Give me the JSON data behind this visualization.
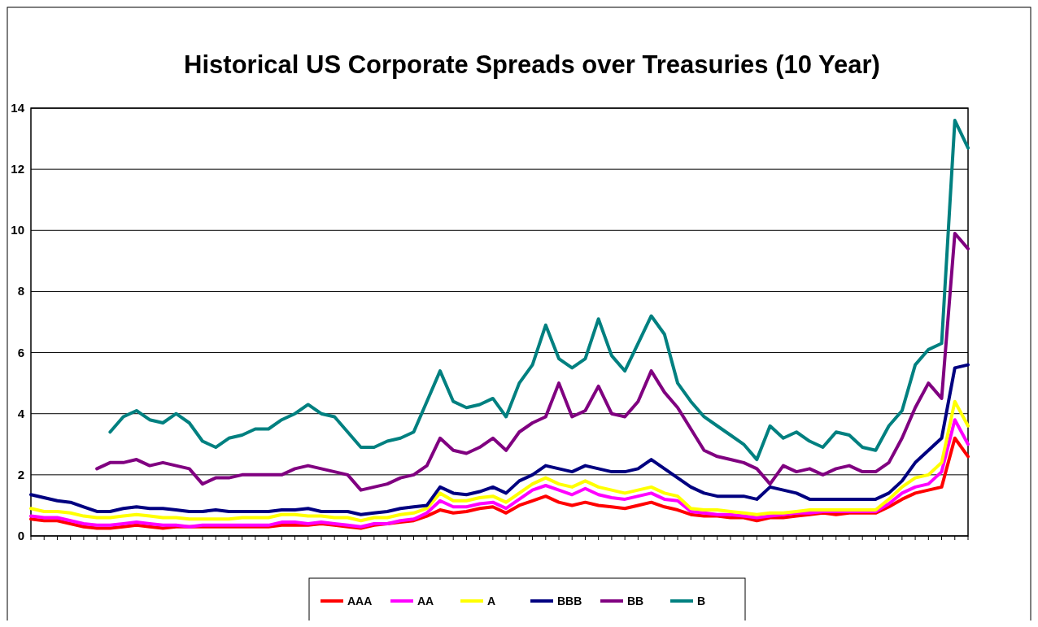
{
  "chart_data": {
    "type": "line",
    "title": "Historical US Corporate Spreads over Treasuries (10 Year)",
    "categories": [
      null,
      null,
      null,
      null,
      null,
      null,
      null,
      null,
      null,
      null,
      null,
      null,
      null,
      null,
      null,
      null,
      null,
      null,
      null,
      null,
      null,
      null,
      null,
      null,
      null,
      null,
      null,
      null,
      null,
      null,
      null,
      null,
      null,
      null,
      null,
      null,
      null,
      null,
      null,
      null,
      null,
      null,
      null,
      null,
      null,
      null,
      null,
      null,
      null,
      null,
      null,
      null,
      null,
      null,
      null,
      null,
      null,
      null,
      null,
      null,
      null,
      null,
      null,
      null,
      null,
      null,
      null,
      null,
      null,
      null,
      null,
      null
    ],
    "series": [
      {
        "name": "AAA",
        "color": "#ff0000",
        "values": [
          0.55,
          0.5,
          0.5,
          0.4,
          0.3,
          0.25,
          0.25,
          0.3,
          0.35,
          0.3,
          0.25,
          0.3,
          0.3,
          0.3,
          0.3,
          0.3,
          0.3,
          0.3,
          0.3,
          0.35,
          0.35,
          0.35,
          0.4,
          0.35,
          0.3,
          0.25,
          0.35,
          0.4,
          0.45,
          0.5,
          0.65,
          0.85,
          0.75,
          0.8,
          0.9,
          0.95,
          0.75,
          1.0,
          1.15,
          1.3,
          1.1,
          1.0,
          1.1,
          1.0,
          0.95,
          0.9,
          1.0,
          1.1,
          0.95,
          0.85,
          0.7,
          0.65,
          0.65,
          0.6,
          0.6,
          0.5,
          0.6,
          0.6,
          0.65,
          0.7,
          0.75,
          0.7,
          0.75,
          0.75,
          0.75,
          0.95,
          1.2,
          1.4,
          1.5,
          1.6,
          3.2,
          2.6
        ]
      },
      {
        "name": "AA",
        "color": "#ff00ff",
        "values": [
          0.65,
          0.6,
          0.6,
          0.5,
          0.4,
          0.35,
          0.35,
          0.4,
          0.45,
          0.4,
          0.35,
          0.35,
          0.3,
          0.35,
          0.35,
          0.35,
          0.35,
          0.35,
          0.35,
          0.45,
          0.45,
          0.4,
          0.45,
          0.4,
          0.35,
          0.3,
          0.4,
          0.4,
          0.5,
          0.55,
          0.75,
          1.15,
          0.95,
          0.95,
          1.05,
          1.1,
          0.9,
          1.2,
          1.5,
          1.65,
          1.5,
          1.35,
          1.55,
          1.35,
          1.25,
          1.2,
          1.3,
          1.4,
          1.2,
          1.15,
          0.8,
          0.75,
          0.7,
          0.7,
          0.65,
          0.6,
          0.65,
          0.7,
          0.75,
          0.75,
          0.8,
          0.8,
          0.8,
          0.8,
          0.8,
          1.05,
          1.4,
          1.6,
          1.7,
          2.1,
          3.8,
          3.0
        ]
      },
      {
        "name": "A",
        "color": "#ffff00",
        "values": [
          0.9,
          0.8,
          0.8,
          0.75,
          0.65,
          0.6,
          0.6,
          0.65,
          0.7,
          0.65,
          0.6,
          0.6,
          0.55,
          0.55,
          0.55,
          0.55,
          0.6,
          0.6,
          0.6,
          0.7,
          0.7,
          0.65,
          0.65,
          0.6,
          0.6,
          0.5,
          0.6,
          0.6,
          0.7,
          0.75,
          0.9,
          1.4,
          1.15,
          1.15,
          1.25,
          1.3,
          1.1,
          1.4,
          1.7,
          1.9,
          1.7,
          1.6,
          1.8,
          1.6,
          1.5,
          1.4,
          1.5,
          1.6,
          1.4,
          1.3,
          0.9,
          0.85,
          0.85,
          0.8,
          0.75,
          0.7,
          0.75,
          0.75,
          0.8,
          0.85,
          0.85,
          0.85,
          0.85,
          0.85,
          0.85,
          1.2,
          1.6,
          1.9,
          2.0,
          2.4,
          4.4,
          3.6
        ]
      },
      {
        "name": "BBB",
        "color": "#000080",
        "values": [
          1.35,
          1.25,
          1.15,
          1.1,
          0.95,
          0.8,
          0.8,
          0.9,
          0.95,
          0.9,
          0.9,
          0.85,
          0.8,
          0.8,
          0.85,
          0.8,
          0.8,
          0.8,
          0.8,
          0.85,
          0.85,
          0.9,
          0.8,
          0.8,
          0.8,
          0.7,
          0.75,
          0.8,
          0.9,
          0.95,
          1.0,
          1.6,
          1.4,
          1.35,
          1.45,
          1.6,
          1.4,
          1.8,
          2.0,
          2.3,
          2.2,
          2.1,
          2.3,
          2.2,
          2.1,
          2.1,
          2.2,
          2.5,
          2.2,
          1.9,
          1.6,
          1.4,
          1.3,
          1.3,
          1.3,
          1.2,
          1.6,
          1.5,
          1.4,
          1.2,
          1.2,
          1.2,
          1.2,
          1.2,
          1.2,
          1.4,
          1.8,
          2.4,
          2.8,
          3.2,
          5.5,
          5.6
        ]
      },
      {
        "name": "BB",
        "color": "#800080",
        "values": [
          null,
          null,
          null,
          null,
          null,
          2.2,
          2.4,
          2.4,
          2.5,
          2.3,
          2.4,
          2.3,
          2.2,
          1.7,
          1.9,
          1.9,
          2.0,
          2.0,
          2.0,
          2.0,
          2.2,
          2.3,
          2.2,
          2.1,
          2.0,
          1.5,
          1.6,
          1.7,
          1.9,
          2.0,
          2.3,
          3.2,
          2.8,
          2.7,
          2.9,
          3.2,
          2.8,
          3.4,
          3.7,
          3.9,
          5.0,
          3.9,
          4.1,
          4.9,
          4.0,
          3.9,
          4.4,
          5.4,
          4.7,
          4.2,
          3.5,
          2.8,
          2.6,
          2.5,
          2.4,
          2.2,
          1.7,
          2.3,
          2.1,
          2.2,
          2.0,
          2.2,
          2.3,
          2.1,
          2.1,
          2.4,
          3.2,
          4.2,
          5.0,
          4.5,
          9.9,
          9.4
        ]
      },
      {
        "name": "B",
        "color": "#008080",
        "values": [
          null,
          null,
          null,
          null,
          null,
          null,
          3.4,
          3.9,
          4.1,
          3.8,
          3.7,
          4.0,
          3.7,
          3.1,
          2.9,
          3.2,
          3.3,
          3.5,
          3.5,
          3.8,
          4.0,
          4.3,
          4.0,
          3.9,
          3.4,
          2.9,
          2.9,
          3.1,
          3.2,
          3.4,
          4.4,
          5.4,
          4.4,
          4.2,
          4.3,
          4.5,
          3.9,
          5.0,
          5.6,
          6.9,
          5.8,
          5.5,
          5.8,
          7.1,
          5.9,
          5.4,
          6.3,
          7.2,
          6.6,
          5.0,
          4.4,
          3.9,
          3.6,
          3.3,
          3.0,
          2.5,
          3.6,
          3.2,
          3.4,
          3.1,
          2.9,
          3.4,
          3.3,
          2.9,
          2.8,
          3.6,
          4.1,
          5.6,
          6.1,
          6.3,
          13.6,
          12.7
        ]
      }
    ],
    "ylim": [
      0,
      14
    ],
    "yticks": [
      0,
      2,
      4,
      6,
      8,
      10,
      12,
      14
    ],
    "grid": "y",
    "legend": "bottom",
    "marker": "none",
    "line_style": "solid"
  }
}
